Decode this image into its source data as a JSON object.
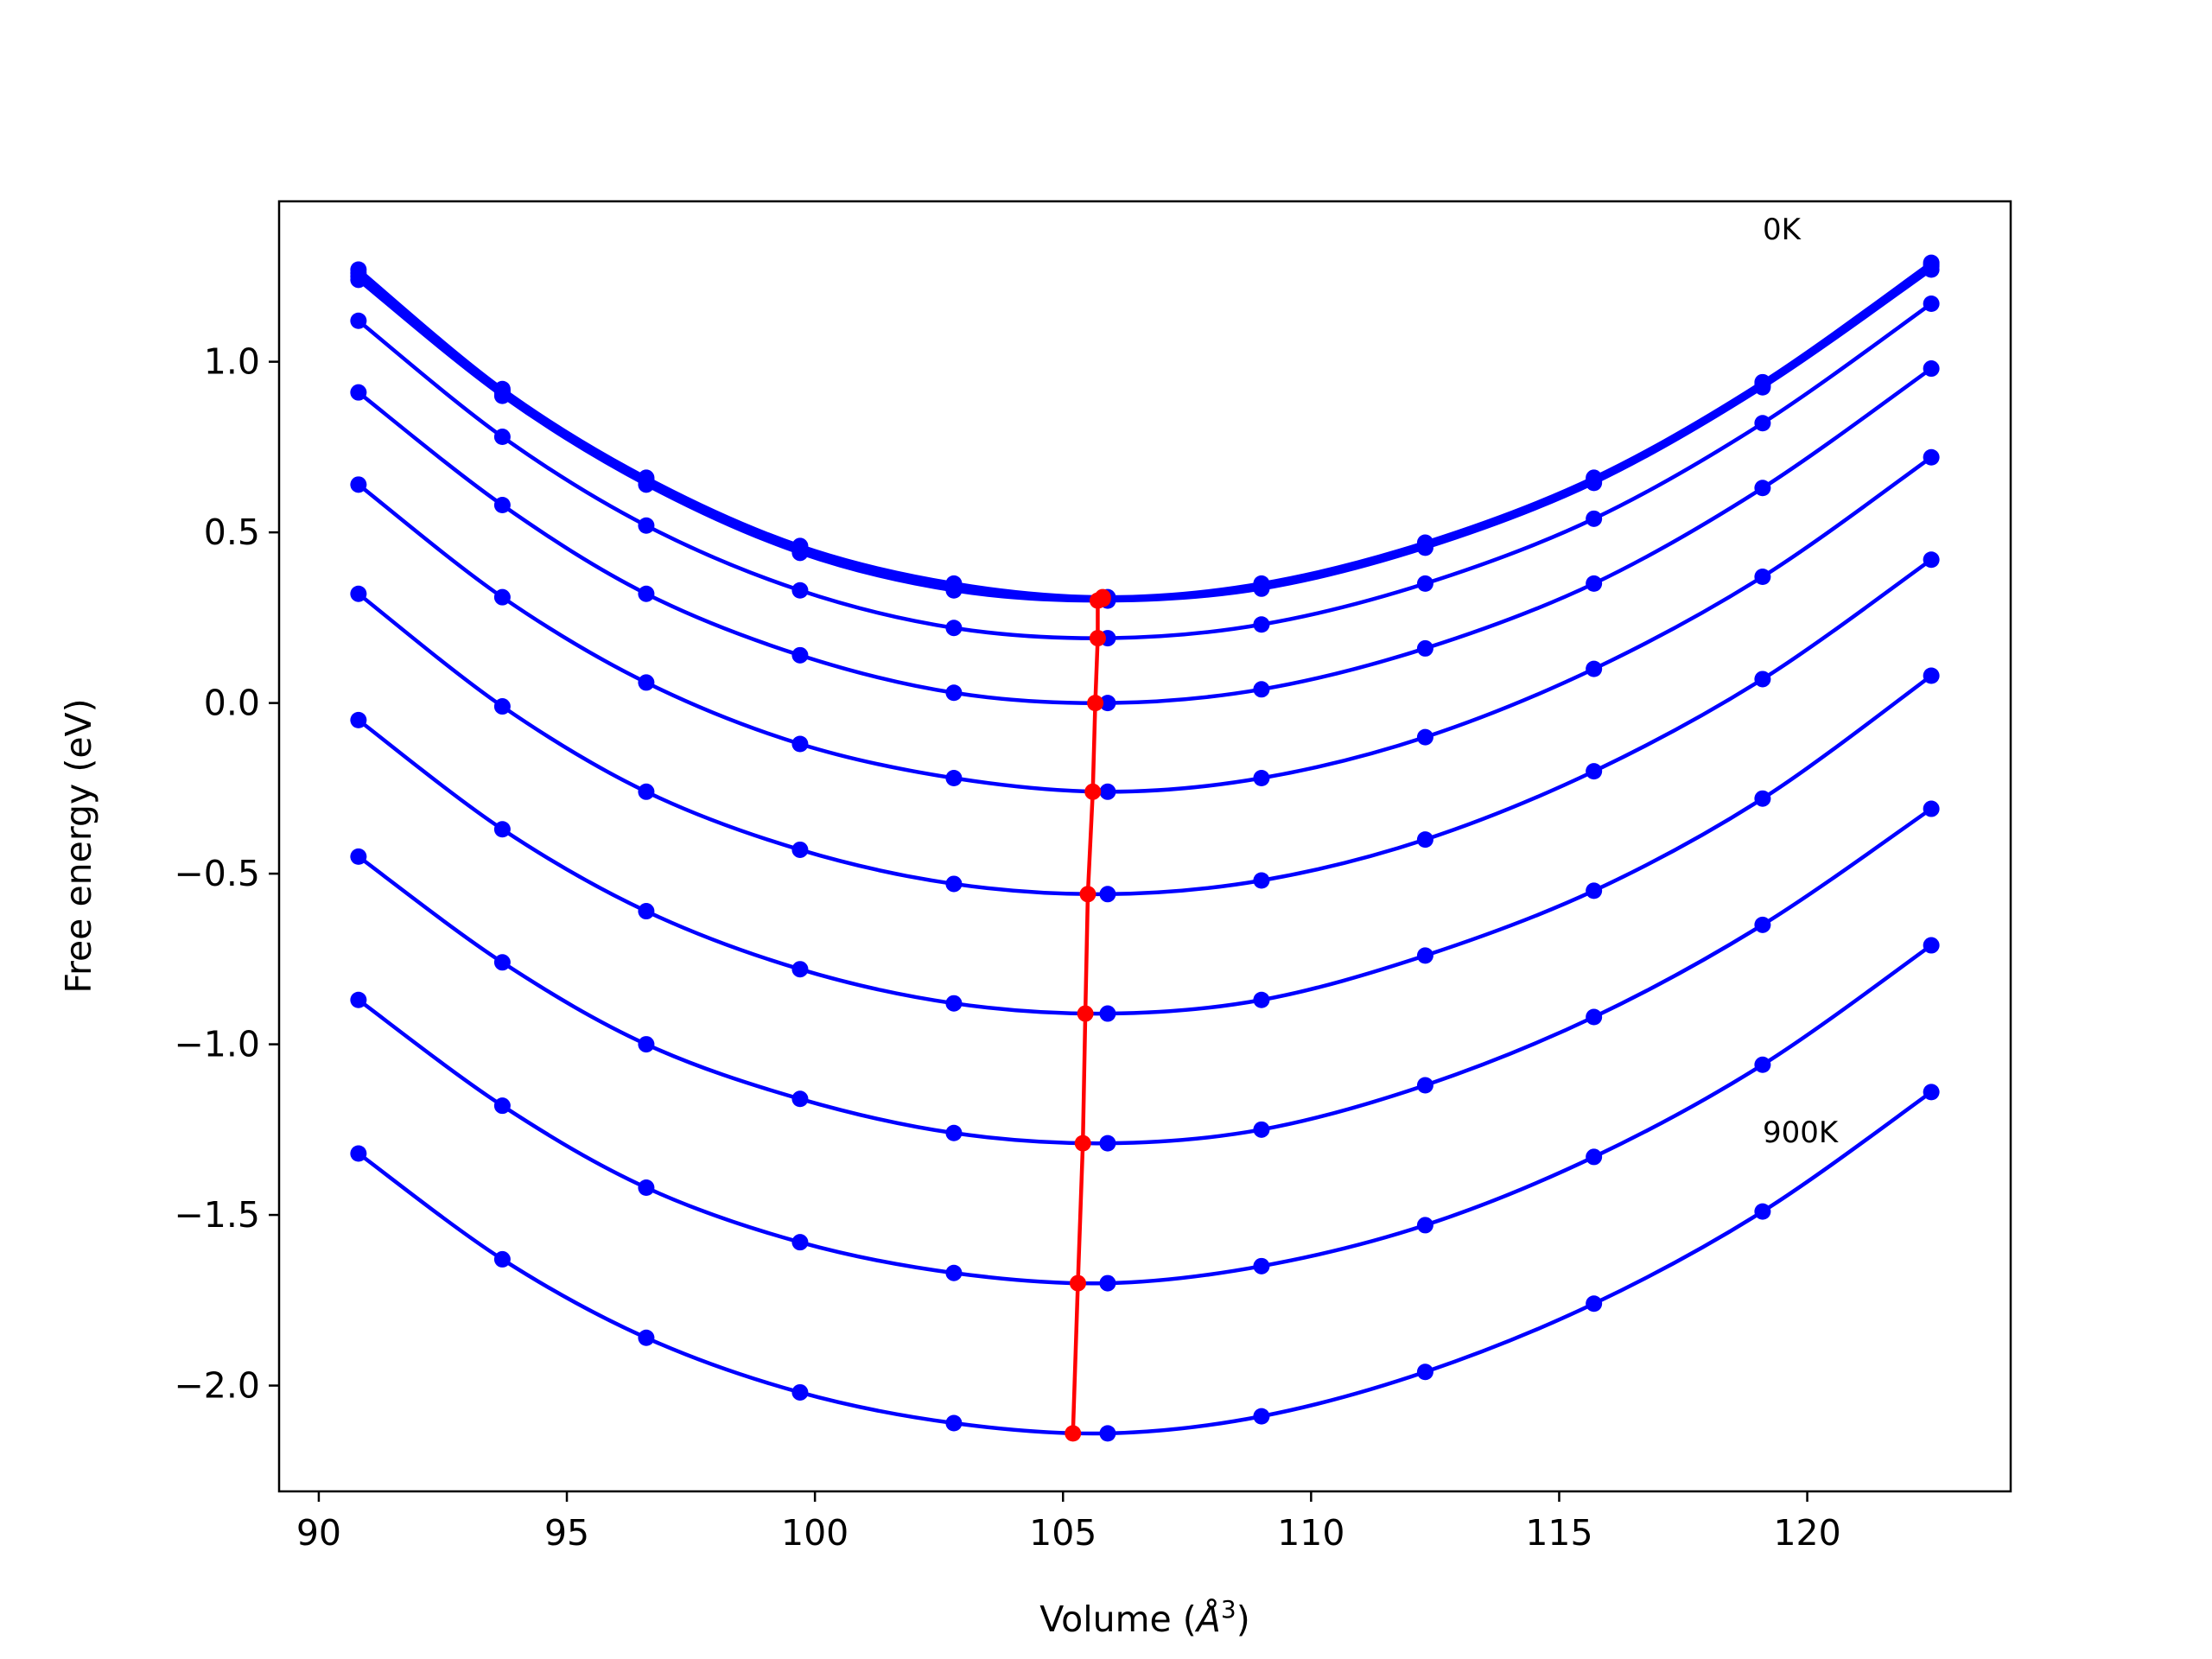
{
  "chart_data": {
    "type": "line",
    "xlabel": "Volume (",
    "xlabel_unit": "Å",
    "xlabel_exp": "3",
    "xlabel_close": ")",
    "ylabel": "Free energy (eV)",
    "xlim": [
      89.2,
      124.1
    ],
    "ylim": [
      -2.31,
      1.47
    ],
    "xticks": [
      90,
      95,
      100,
      105,
      110,
      115,
      120
    ],
    "yticks": [
      -2.0,
      -1.5,
      -1.0,
      -0.5,
      0.0,
      0.5,
      1.0
    ],
    "ytick_labels": [
      "−2.0",
      "−1.5",
      "−1.0",
      "−0.5",
      "0.0",
      "0.5",
      "1.0"
    ],
    "xtick_labels": [
      "90",
      "95",
      "100",
      "105",
      "110",
      "115",
      "120"
    ],
    "grid": false,
    "annotations": [
      {
        "text": "0K",
        "x": 119.0,
        "y": 1.36
      },
      {
        "text": "900K",
        "x": 119.0,
        "y": -1.29
      }
    ],
    "volumes": [
      90.8,
      93.7,
      96.6,
      99.7,
      102.8,
      105.9,
      109.0,
      112.3,
      115.7,
      119.1,
      122.5
    ],
    "colors": {
      "curves": "#0000ff",
      "minima": "#ff0000"
    },
    "series": [
      {
        "values": [
          1.27,
          0.92,
          0.66,
          0.46,
          0.35,
          0.31,
          0.35,
          0.47,
          0.66,
          0.94,
          1.29
        ]
      },
      {
        "values": [
          1.26,
          0.915,
          0.655,
          0.455,
          0.345,
          0.308,
          0.345,
          0.465,
          0.655,
          0.935,
          1.285
        ]
      },
      {
        "values": [
          1.25,
          0.91,
          0.65,
          0.45,
          0.34,
          0.305,
          0.34,
          0.46,
          0.65,
          0.93,
          1.28
        ]
      },
      {
        "values": [
          1.24,
          0.9,
          0.64,
          0.44,
          0.33,
          0.3,
          0.335,
          0.455,
          0.645,
          0.925,
          1.27
        ]
      },
      {
        "values": [
          1.12,
          0.78,
          0.52,
          0.33,
          0.22,
          0.19,
          0.23,
          0.35,
          0.54,
          0.82,
          1.17
        ]
      },
      {
        "values": [
          0.91,
          0.58,
          0.32,
          0.14,
          0.03,
          0.0,
          0.04,
          0.16,
          0.35,
          0.63,
          0.98
        ]
      },
      {
        "values": [
          0.64,
          0.31,
          0.06,
          -0.12,
          -0.22,
          -0.26,
          -0.22,
          -0.1,
          0.1,
          0.37,
          0.72
        ]
      },
      {
        "values": [
          0.32,
          -0.01,
          -0.26,
          -0.43,
          -0.53,
          -0.56,
          -0.52,
          -0.4,
          -0.2,
          0.07,
          0.42
        ]
      },
      {
        "values": [
          -0.05,
          -0.37,
          -0.61,
          -0.78,
          -0.88,
          -0.91,
          -0.87,
          -0.74,
          -0.55,
          -0.28,
          0.08
        ]
      },
      {
        "values": [
          -0.45,
          -0.76,
          -1.0,
          -1.16,
          -1.26,
          -1.29,
          -1.25,
          -1.12,
          -0.92,
          -0.65,
          -0.31
        ]
      },
      {
        "values": [
          -0.87,
          -1.18,
          -1.42,
          -1.58,
          -1.67,
          -1.7,
          -1.65,
          -1.53,
          -1.33,
          -1.06,
          -0.71
        ]
      },
      {
        "values": [
          -1.32,
          -1.63,
          -1.86,
          -2.02,
          -2.11,
          -2.14,
          -2.09,
          -1.96,
          -1.76,
          -1.49,
          -1.14
        ]
      }
    ],
    "minima": {
      "x": [
        105.8,
        105.8,
        105.8,
        105.7,
        105.7,
        105.65,
        105.6,
        105.5,
        105.45,
        105.4,
        105.3,
        105.2
      ],
      "y": [
        0.31,
        0.308,
        0.305,
        0.3,
        0.19,
        0.0,
        -0.26,
        -0.56,
        -0.91,
        -1.29,
        -1.7,
        -2.14
      ]
    }
  }
}
